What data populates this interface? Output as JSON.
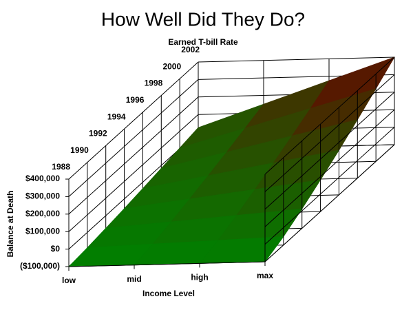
{
  "chart_data": {
    "type": "surface",
    "title": "How Well Did They Do?",
    "x_label": "Income Level",
    "y_label": "Earned T-bill Rate",
    "z_label": "Balance at Death",
    "categories": [
      "low",
      "mid",
      "high",
      "max"
    ],
    "ylim": [
      1988,
      2002
    ],
    "yticks": [
      1988,
      1990,
      1992,
      1994,
      1996,
      1998,
      2000,
      2002
    ],
    "zlim": [
      -100000,
      400000
    ],
    "zticks": [
      {
        "value": -100000,
        "label": "($100,000)"
      },
      {
        "value": 0,
        "label": "$0"
      },
      {
        "value": 100000,
        "label": "$100,000"
      },
      {
        "value": 200000,
        "label": "$200,000"
      },
      {
        "value": 300000,
        "label": "$300,000"
      },
      {
        "value": 400000,
        "label": "$400,000"
      }
    ],
    "years": [
      1988,
      1990,
      1992,
      1994,
      1996,
      1998,
      2000,
      2002
    ],
    "values": [
      [
        -100000,
        -100000,
        -100000,
        -100000
      ],
      [
        -88000,
        -76000,
        -64000,
        -52000
      ],
      [
        -72000,
        -44500,
        -17000,
        11000
      ],
      [
        -55000,
        -9500,
        36000,
        81000
      ],
      [
        -36000,
        28000,
        92000,
        155000
      ],
      [
        -16500,
        67000,
        150500,
        234000
      ],
      [
        4000,
        108000,
        212000,
        315500
      ],
      [
        25000,
        150000,
        275000,
        400000
      ]
    ],
    "color_low": "#008000",
    "color_high": "#6b0000"
  }
}
